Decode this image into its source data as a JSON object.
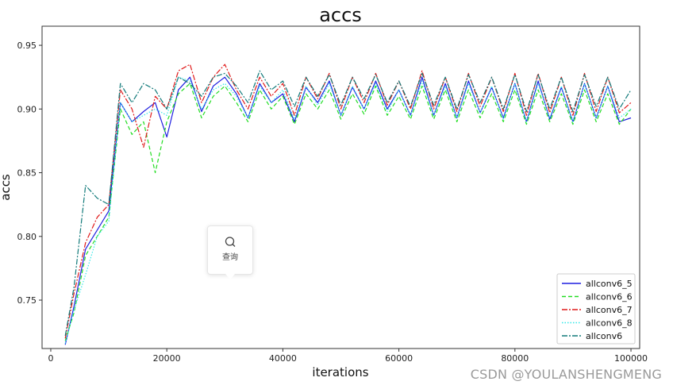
{
  "chart_data": {
    "type": "line",
    "title": "accs",
    "xlabel": "iterations",
    "ylabel": "accs",
    "xlim": [
      -1500,
      101500
    ],
    "ylim": [
      0.712,
      0.965
    ],
    "xticks": [
      0,
      20000,
      40000,
      60000,
      80000,
      100000
    ],
    "yticks": [
      0.75,
      0.8,
      0.85,
      0.9,
      0.95
    ],
    "xtick_labels": [
      "0",
      "20000",
      "40000",
      "60000",
      "80000",
      "100000"
    ],
    "ytick_labels": [
      "0.75",
      "0.80",
      "0.85",
      "0.90",
      "0.95"
    ],
    "grid": false,
    "legend_position": "lower-right",
    "series": [
      {
        "name": "allconv6_5",
        "color": "#1f1fe0",
        "dash": "solid",
        "x": [
          2500,
          4000,
          6000,
          8000,
          10000,
          12000,
          14000,
          16000,
          18000,
          20000,
          22000,
          24000,
          26000,
          28000,
          30000,
          32000,
          34000,
          36000,
          38000,
          40000,
          42000,
          44000,
          46000,
          48000,
          50000,
          52000,
          54000,
          56000,
          58000,
          60000,
          62000,
          64000,
          66000,
          68000,
          70000,
          72000,
          74000,
          76000,
          78000,
          80000,
          82000,
          84000,
          86000,
          88000,
          90000,
          92000,
          94000,
          96000,
          98000,
          100000
        ],
        "values": [
          0.715,
          0.745,
          0.79,
          0.805,
          0.82,
          0.905,
          0.89,
          0.898,
          0.905,
          0.878,
          0.915,
          0.925,
          0.898,
          0.918,
          0.925,
          0.912,
          0.893,
          0.92,
          0.905,
          0.912,
          0.89,
          0.917,
          0.905,
          0.922,
          0.895,
          0.917,
          0.9,
          0.922,
          0.9,
          0.915,
          0.895,
          0.925,
          0.895,
          0.92,
          0.893,
          0.922,
          0.897,
          0.917,
          0.893,
          0.92,
          0.89,
          0.922,
          0.892,
          0.917,
          0.89,
          0.92,
          0.893,
          0.918,
          0.89,
          0.893
        ]
      },
      {
        "name": "allconv6_6",
        "color": "#22dd22",
        "dash": "dashed",
        "x": [
          2500,
          4000,
          6000,
          8000,
          10000,
          12000,
          14000,
          16000,
          18000,
          20000,
          22000,
          24000,
          26000,
          28000,
          30000,
          32000,
          34000,
          36000,
          38000,
          40000,
          42000,
          44000,
          46000,
          48000,
          50000,
          52000,
          54000,
          56000,
          58000,
          60000,
          62000,
          64000,
          66000,
          68000,
          70000,
          72000,
          74000,
          76000,
          78000,
          80000,
          82000,
          84000,
          86000,
          88000,
          90000,
          92000,
          94000,
          96000,
          98000,
          100000
        ],
        "values": [
          0.718,
          0.74,
          0.785,
          0.8,
          0.815,
          0.9,
          0.88,
          0.89,
          0.85,
          0.89,
          0.912,
          0.92,
          0.893,
          0.91,
          0.918,
          0.905,
          0.89,
          0.915,
          0.9,
          0.91,
          0.888,
          0.912,
          0.9,
          0.915,
          0.892,
          0.912,
          0.896,
          0.918,
          0.895,
          0.91,
          0.892,
          0.918,
          0.892,
          0.915,
          0.89,
          0.915,
          0.893,
          0.912,
          0.89,
          0.915,
          0.888,
          0.915,
          0.89,
          0.912,
          0.888,
          0.915,
          0.89,
          0.912,
          0.888,
          0.9
        ]
      },
      {
        "name": "allconv6_7",
        "color": "#e01a1a",
        "dash": "dashdot",
        "x": [
          2500,
          4000,
          6000,
          8000,
          10000,
          12000,
          14000,
          16000,
          18000,
          20000,
          22000,
          24000,
          26000,
          28000,
          30000,
          32000,
          34000,
          36000,
          38000,
          40000,
          42000,
          44000,
          46000,
          48000,
          50000,
          52000,
          54000,
          56000,
          58000,
          60000,
          62000,
          64000,
          66000,
          68000,
          70000,
          72000,
          74000,
          76000,
          78000,
          80000,
          82000,
          84000,
          86000,
          88000,
          90000,
          92000,
          94000,
          96000,
          98000,
          100000
        ],
        "values": [
          0.72,
          0.755,
          0.795,
          0.815,
          0.825,
          0.915,
          0.9,
          0.87,
          0.91,
          0.9,
          0.93,
          0.935,
          0.905,
          0.925,
          0.935,
          0.915,
          0.9,
          0.925,
          0.91,
          0.92,
          0.895,
          0.925,
          0.908,
          0.928,
          0.9,
          0.925,
          0.905,
          0.928,
          0.903,
          0.922,
          0.9,
          0.93,
          0.9,
          0.925,
          0.898,
          0.928,
          0.902,
          0.925,
          0.898,
          0.928,
          0.895,
          0.928,
          0.897,
          0.925,
          0.895,
          0.928,
          0.898,
          0.925,
          0.897,
          0.905
        ]
      },
      {
        "name": "allconv6_8",
        "color": "#33e8e8",
        "dash": "dotted",
        "x": [
          2500,
          4000,
          6000,
          8000,
          10000,
          12000,
          14000,
          16000,
          18000,
          20000,
          22000,
          24000,
          26000,
          28000,
          30000,
          32000,
          34000,
          36000,
          38000,
          40000,
          42000,
          44000,
          46000,
          48000,
          50000,
          52000,
          54000,
          56000,
          58000,
          60000,
          62000,
          64000,
          66000,
          68000,
          70000,
          72000,
          74000,
          76000,
          78000,
          80000,
          82000,
          84000,
          86000,
          88000,
          90000,
          92000,
          94000,
          96000,
          98000,
          100000
        ],
        "values": [
          0.716,
          0.742,
          0.77,
          0.8,
          0.812,
          0.905,
          0.89,
          0.895,
          0.9,
          0.895,
          0.925,
          0.922,
          0.9,
          0.915,
          0.92,
          0.91,
          0.893,
          0.918,
          0.905,
          0.915,
          0.892,
          0.918,
          0.903,
          0.92,
          0.895,
          0.918,
          0.9,
          0.92,
          0.898,
          0.915,
          0.895,
          0.922,
          0.895,
          0.918,
          0.893,
          0.92,
          0.897,
          0.918,
          0.892,
          0.92,
          0.89,
          0.92,
          0.893,
          0.918,
          0.89,
          0.92,
          0.893,
          0.918,
          0.893,
          0.9
        ]
      },
      {
        "name": "allconv6",
        "color": "#117a7a",
        "dash": "dashdot",
        "x": [
          2500,
          4000,
          6000,
          8000,
          10000,
          12000,
          14000,
          16000,
          18000,
          20000,
          22000,
          24000,
          26000,
          28000,
          30000,
          32000,
          34000,
          36000,
          38000,
          40000,
          42000,
          44000,
          46000,
          48000,
          50000,
          52000,
          54000,
          56000,
          58000,
          60000,
          62000,
          64000,
          66000,
          68000,
          70000,
          72000,
          74000,
          76000,
          78000,
          80000,
          82000,
          84000,
          86000,
          88000,
          90000,
          92000,
          94000,
          96000,
          98000,
          100000
        ],
        "values": [
          0.722,
          0.76,
          0.84,
          0.83,
          0.825,
          0.92,
          0.905,
          0.92,
          0.915,
          0.9,
          0.925,
          0.92,
          0.91,
          0.925,
          0.928,
          0.918,
          0.905,
          0.93,
          0.915,
          0.922,
          0.902,
          0.925,
          0.91,
          0.927,
          0.903,
          0.925,
          0.908,
          0.927,
          0.905,
          0.922,
          0.902,
          0.928,
          0.903,
          0.925,
          0.9,
          0.927,
          0.905,
          0.925,
          0.9,
          0.927,
          0.898,
          0.927,
          0.9,
          0.925,
          0.898,
          0.927,
          0.902,
          0.925,
          0.9,
          0.915
        ]
      }
    ]
  },
  "popup": {
    "label": "查询",
    "icon": "search-icon"
  },
  "watermark": "CSDN @YOULANSHENGMENG"
}
